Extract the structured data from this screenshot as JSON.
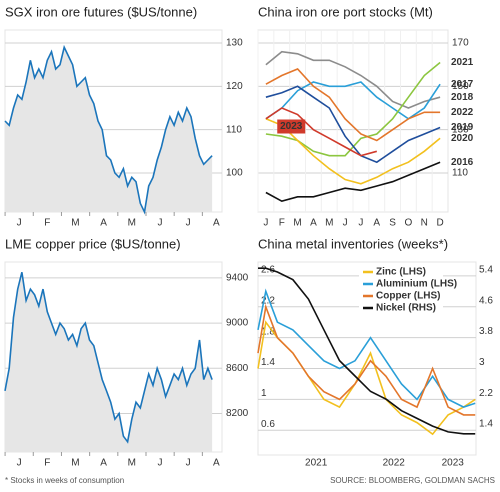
{
  "chart_data": [
    {
      "type": "line",
      "title": "SGX iron ore futures ($US/tonne)",
      "area": true,
      "color": "#1b75bb",
      "area_color": "#e6e6e6",
      "x": [
        0.0,
        0.15,
        0.3,
        0.45,
        0.6,
        0.75,
        0.9,
        1.05,
        1.2,
        1.35,
        1.5,
        1.65,
        1.8,
        1.95,
        2.1,
        2.25,
        2.4,
        2.55,
        2.7,
        2.85,
        3.0,
        3.15,
        3.3,
        3.45,
        3.6,
        3.75,
        3.9,
        4.05,
        4.2,
        4.35,
        4.5,
        4.65,
        4.8,
        4.95,
        5.1,
        5.25,
        5.4,
        5.55,
        5.7,
        5.85,
        6.0,
        6.15,
        6.3,
        6.45,
        6.6,
        6.75,
        6.9,
        7.05,
        7.2,
        7.35
      ],
      "values": [
        112,
        111,
        115,
        118,
        117,
        121,
        126,
        122,
        124,
        122,
        126,
        128,
        124,
        125,
        129,
        127,
        125,
        120,
        121,
        122,
        118,
        116,
        112,
        110,
        104,
        103,
        100,
        99,
        101,
        97,
        99,
        98,
        93,
        91,
        97,
        99,
        103,
        106,
        110,
        113,
        111,
        114,
        112,
        115,
        113,
        108,
        104,
        102,
        103,
        104
      ],
      "xlim": [
        0,
        7.7
      ],
      "ylim": [
        91,
        133
      ],
      "yticks": [
        100,
        110,
        120,
        130
      ],
      "xticks": [
        {
          "value": 0.5,
          "label": "J"
        },
        {
          "value": 1.5,
          "label": "F"
        },
        {
          "value": 2.5,
          "label": "M"
        },
        {
          "value": 3.5,
          "label": "A"
        },
        {
          "value": 4.5,
          "label": "M"
        },
        {
          "value": 5.5,
          "label": "J"
        },
        {
          "value": 6.5,
          "label": "J"
        },
        {
          "value": 7.5,
          "label": "A"
        }
      ],
      "grid": true
    },
    {
      "type": "multiline",
      "title": "China iron ore port stocks (Mt)",
      "categories": [
        "J",
        "F",
        "M",
        "A",
        "M",
        "J",
        "J",
        "A",
        "S",
        "O",
        "N",
        "D"
      ],
      "series": [
        {
          "name": "2016",
          "color": "#111111",
          "values": [
            101,
            97,
            99,
            99,
            101,
            103,
            102,
            104,
            106,
            109,
            112,
            115
          ]
        },
        {
          "name": "2018",
          "color": "#8c8c8c",
          "values": [
            160,
            166,
            165,
            162,
            162,
            159,
            155,
            150,
            143,
            140,
            143,
            145
          ]
        },
        {
          "name": "2017",
          "color": "#2a9fd8",
          "values": [
            135,
            140,
            148,
            152,
            150,
            150,
            152,
            145,
            140,
            135,
            140,
            151
          ]
        },
        {
          "name": "2021",
          "color": "#8cc63f",
          "values": [
            128,
            127,
            125,
            120,
            118,
            118,
            126,
            128,
            135,
            145,
            155,
            161
          ]
        },
        {
          "name": "2019",
          "color": "#1f4e9c",
          "values": [
            145,
            147,
            150,
            145,
            140,
            127,
            118,
            115,
            120,
            125,
            128,
            131
          ]
        },
        {
          "name": "2020",
          "color": "#f2c01e",
          "values": [
            135,
            132,
            125,
            118,
            112,
            107,
            105,
            108,
            112,
            115,
            120,
            126
          ]
        },
        {
          "name": "2022",
          "color": "#e3762b",
          "values": [
            151,
            155,
            158,
            150,
            145,
            135,
            128,
            125,
            130,
            135,
            138,
            138
          ]
        },
        {
          "name": "2023",
          "color": "#d03a2b",
          "values": [
            135,
            140,
            137,
            130,
            126,
            122,
            118,
            120,
            null,
            null,
            null,
            null
          ]
        }
      ],
      "ylim": [
        92,
        176
      ],
      "yticks": [
        110,
        130,
        150,
        170
      ],
      "grid": true
    },
    {
      "type": "line",
      "title": "LME copper price ($US/tonne)",
      "area": true,
      "color": "#1b75bb",
      "area_color": "#e6e6e6",
      "x": [
        0.0,
        0.15,
        0.3,
        0.45,
        0.6,
        0.75,
        0.9,
        1.05,
        1.2,
        1.35,
        1.5,
        1.65,
        1.8,
        1.95,
        2.1,
        2.25,
        2.4,
        2.55,
        2.7,
        2.85,
        3.0,
        3.15,
        3.3,
        3.45,
        3.6,
        3.75,
        3.9,
        4.05,
        4.2,
        4.35,
        4.5,
        4.65,
        4.8,
        4.95,
        5.1,
        5.25,
        5.4,
        5.55,
        5.7,
        5.85,
        6.0,
        6.15,
        6.3,
        6.45,
        6.6,
        6.75,
        6.9,
        7.05,
        7.2,
        7.35
      ],
      "values": [
        8400,
        8600,
        9050,
        9300,
        9450,
        9200,
        9300,
        9250,
        9150,
        9300,
        9100,
        9000,
        8900,
        9000,
        8950,
        8850,
        8900,
        8800,
        8950,
        9000,
        8850,
        8800,
        8650,
        8500,
        8400,
        8300,
        8150,
        8200,
        8000,
        7950,
        8150,
        8300,
        8250,
        8400,
        8550,
        8450,
        8600,
        8500,
        8350,
        8450,
        8550,
        8500,
        8600,
        8450,
        8550,
        8600,
        8850,
        8500,
        8600,
        8500
      ],
      "xlim": [
        0,
        7.7
      ],
      "ylim": [
        7860,
        9540
      ],
      "yticks": [
        8200,
        8600,
        9000,
        9400
      ],
      "xticks": [
        {
          "value": 0.5,
          "label": "J"
        },
        {
          "value": 1.5,
          "label": "F"
        },
        {
          "value": 2.5,
          "label": "M"
        },
        {
          "value": 3.5,
          "label": "A"
        },
        {
          "value": 4.5,
          "label": "M"
        },
        {
          "value": 5.5,
          "label": "J"
        },
        {
          "value": 6.5,
          "label": "J"
        },
        {
          "value": 7.5,
          "label": "A"
        }
      ],
      "grid": true
    },
    {
      "type": "dual",
      "title": "China metal inventories (weeks*)",
      "legend": "top",
      "x": [
        2020.75,
        2020.85,
        2021.0,
        2021.2,
        2021.4,
        2021.6,
        2021.8,
        2022.0,
        2022.2,
        2022.4,
        2022.6,
        2022.8,
        2023.0,
        2023.2,
        2023.4,
        2023.55
      ],
      "series": [
        {
          "name": "Zinc (LHS)",
          "color": "#f2c01e",
          "values": [
            1.4,
            2.0,
            1.8,
            1.6,
            1.3,
            1.0,
            0.9,
            1.2,
            1.6,
            1.0,
            0.8,
            0.7,
            0.55,
            0.8,
            0.9,
            1.0
          ]
        },
        {
          "name": "Aluminium (LHS)",
          "color": "#2a9fd8",
          "values": [
            1.9,
            2.4,
            2.0,
            1.9,
            1.7,
            1.5,
            1.4,
            1.5,
            1.8,
            1.5,
            1.2,
            1.0,
            1.3,
            1.0,
            0.9,
            0.95
          ]
        },
        {
          "name": "Copper (LHS)",
          "color": "#e3762b",
          "values": [
            1.6,
            2.2,
            1.8,
            1.6,
            1.3,
            1.1,
            1.0,
            1.2,
            1.5,
            1.3,
            1.0,
            0.9,
            1.4,
            0.9,
            0.8,
            0.8
          ]
        },
        {
          "name": "Nickel (RHS)",
          "color": "#111111",
          "axis": "y2",
          "values": [
            5.6,
            5.6,
            5.5,
            5.3,
            4.8,
            4.0,
            3.2,
            2.8,
            2.4,
            2.2,
            1.9,
            1.7,
            1.5,
            1.35,
            1.3,
            1.3
          ]
        }
      ],
      "xlim": [
        2020.75,
        2023.56
      ],
      "xticks": [
        {
          "value": 2021.5,
          "label": "2021"
        },
        {
          "value": 2022.5,
          "label": "2022"
        },
        {
          "value": 2023.26,
          "label": "2023"
        }
      ],
      "ylim": [
        0.28,
        2.78
      ],
      "yticks": [
        0.6,
        1.0,
        1.4,
        1.8,
        2.2,
        2.6
      ],
      "y2lim": [
        0.75,
        5.76
      ],
      "y2ticks": [
        1.4,
        2.2,
        3.0,
        3.8,
        4.6,
        5.4
      ],
      "grid": true
    }
  ],
  "footnote": "* Stocks in weeks of consumption",
  "source": "SOURCE: BLOOMBERG, GOLDMAN SACHS"
}
